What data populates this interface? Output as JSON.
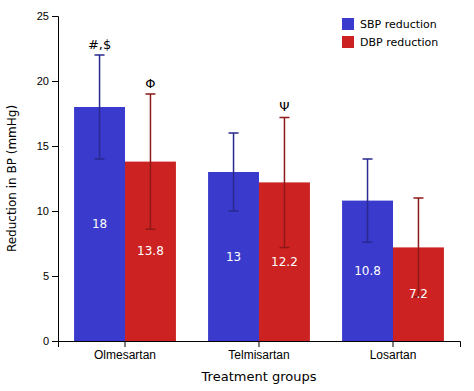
{
  "chart_data": {
    "type": "bar",
    "categories": [
      "Olmesartan",
      "Telmisartan",
      "Losartan"
    ],
    "series": [
      {
        "name": "SBP reduction",
        "color": "#3a3acc",
        "values": [
          18,
          13,
          10.8
        ],
        "errors": [
          4,
          3,
          3.2
        ],
        "annotations": [
          "#,$",
          null,
          null
        ]
      },
      {
        "name": "DBP reduction",
        "color": "#cc2222",
        "values": [
          13.8,
          12.2,
          7.2
        ],
        "errors": [
          5.2,
          5,
          3.8
        ],
        "annotations": [
          "Φ",
          "Ψ",
          null
        ]
      }
    ],
    "xlabel": "Treatment groups",
    "ylabel": "Reduction in BP (mmHg)",
    "ylim": [
      0,
      25
    ],
    "yticks": [
      0,
      5,
      10,
      15,
      20,
      25
    ],
    "grid": false,
    "legend": "upper right",
    "data_labels": true
  }
}
